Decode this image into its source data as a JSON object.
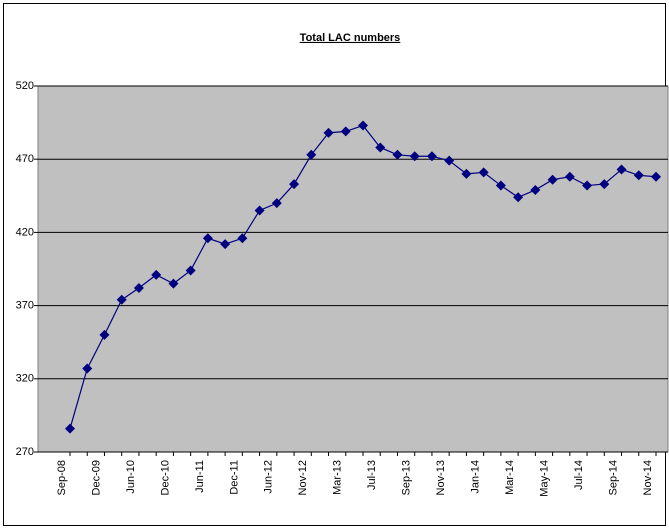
{
  "chart_data": {
    "type": "line",
    "title": "Total LAC numbers",
    "categories": [
      "Sep-08",
      null,
      "Dec-09",
      null,
      "Jun-10",
      null,
      "Dec-10",
      null,
      "Jun-11",
      null,
      "Dec-11",
      null,
      "Jun-12",
      null,
      "Nov-12",
      null,
      "Mar-13",
      null,
      "Jul-13",
      null,
      "Sep-13",
      null,
      "Nov-13",
      null,
      "Jan-14",
      null,
      "Mar-14",
      null,
      "May-14",
      null,
      "Jul-14",
      null,
      "Sep-14",
      null,
      "Nov-14"
    ],
    "series": [
      {
        "name": "Total LAC numbers",
        "color": "#000080",
        "values": [
          286,
          327,
          350,
          374,
          382,
          391,
          385,
          394,
          416,
          412,
          416,
          435,
          440,
          453,
          473,
          488,
          489,
          493,
          478,
          473,
          472,
          472,
          469,
          460,
          461,
          452,
          444,
          449,
          456,
          458,
          452,
          453,
          463,
          459,
          458
        ]
      }
    ],
    "ylim": [
      270,
      520
    ],
    "yticks": [
      270,
      320,
      370,
      420,
      470,
      520
    ],
    "grid": true
  }
}
